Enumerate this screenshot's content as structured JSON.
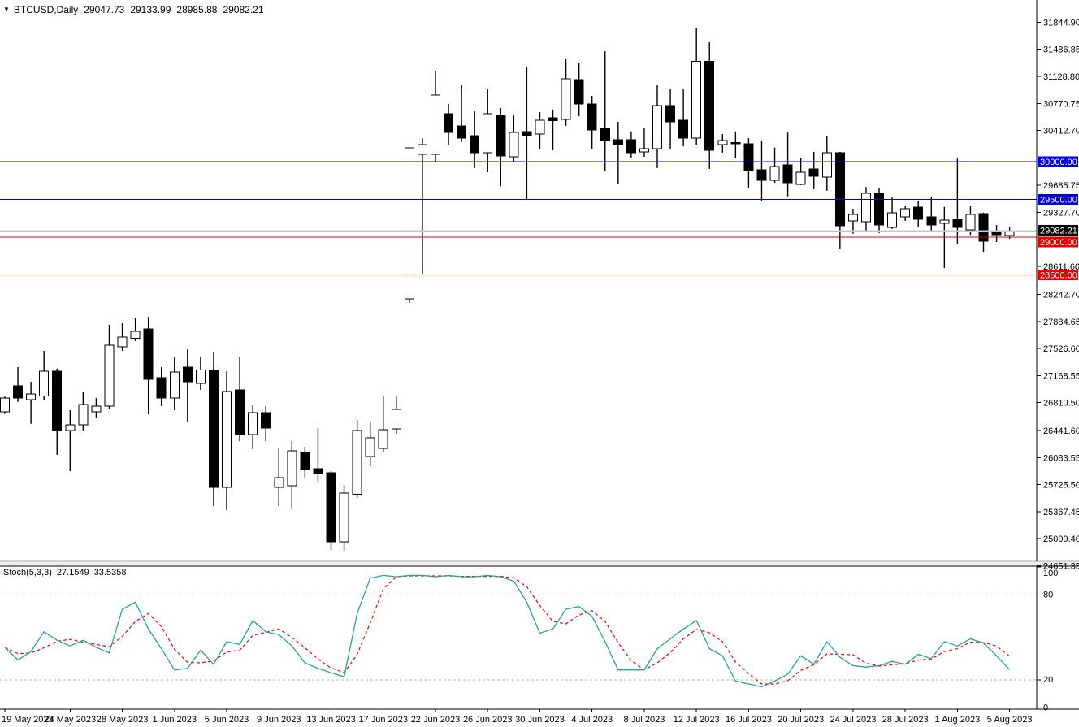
{
  "header": {
    "symbol_period": "BTCUSD,Daily",
    "open": "29047.73",
    "high": "29133.99",
    "low": "28985.88",
    "close": "29082.21"
  },
  "chart_data": {
    "type": "candlestick_with_stochastic",
    "symbol": "BTCUSD",
    "timeframe": "Daily",
    "colors": {
      "bull_body": "#ffffff",
      "bear_body": "#000000",
      "outline": "#000000",
      "blue_level": "#0000e0",
      "red_level": "#e60000",
      "current_price_line": "#c8c8c8",
      "current_price_badge": "#000000",
      "stoch_k": "#25a2a2",
      "stoch_d": "#ff0000",
      "dotted_level": "#bbbbbb"
    },
    "price_axis_ticks": [
      31844.9,
      31486.85,
      31128.8,
      30770.75,
      30412.7,
      29685.75,
      29327.7,
      28611.6,
      28242.7,
      27884.65,
      27526.6,
      27168.55,
      26810.5,
      26441.6,
      26083.55,
      25725.5,
      25367.45,
      25009.4,
      24651.35
    ],
    "price_levels": [
      {
        "price": 30000.0,
        "label": "30000.00",
        "color": "#0000e0"
      },
      {
        "price": 29500.0,
        "label": "29500.00",
        "color": "#0000e0"
      },
      {
        "price": 29000.0,
        "label": "29000.00",
        "color": "#e60000"
      },
      {
        "price": 28500.0,
        "label": "28500.00",
        "color": "#e60000"
      }
    ],
    "current_price": {
      "price": 29082.21,
      "label": "29082.21"
    },
    "x_axis_labels": [
      "19 May 2023",
      "24 May 2023",
      "28 May 2023",
      "1 Jun 2023",
      "5 Jun 2023",
      "9 Jun 2023",
      "13 Jun 2023",
      "17 Jun 2023",
      "22 Jun 2023",
      "26 Jun 2023",
      "30 Jun 2023",
      "4 Jul 2023",
      "8 Jul 2023",
      "12 Jul 2023",
      "16 Jul 2023",
      "20 Jul 2023",
      "24 Jul 2023",
      "28 Jul 2023",
      "1 Aug 2023",
      "5 Aug 2023"
    ],
    "x_tick_candle_indices": [
      0,
      5,
      9,
      13,
      17,
      21,
      25,
      29,
      33,
      37,
      41,
      45,
      49,
      53,
      57,
      61,
      65,
      69,
      73,
      77
    ],
    "candles_ohlc": [
      [
        26690,
        26890,
        26660,
        26870
      ],
      [
        27035,
        27280,
        26820,
        26870
      ],
      [
        26850,
        27085,
        26530,
        26925
      ],
      [
        26900,
        27495,
        26840,
        27225
      ],
      [
        27225,
        27260,
        26120,
        26440
      ],
      [
        26440,
        26710,
        25905,
        26515
      ],
      [
        26515,
        26955,
        26440,
        26785
      ],
      [
        26690,
        26870,
        26605,
        26765
      ],
      [
        26765,
        27840,
        26730,
        27570
      ],
      [
        27550,
        27860,
        27495,
        27680
      ],
      [
        27660,
        27925,
        27625,
        27755
      ],
      [
        27785,
        27945,
        26655,
        27120
      ],
      [
        27140,
        27280,
        26765,
        26870
      ],
      [
        26870,
        27410,
        26710,
        27215
      ],
      [
        27280,
        27515,
        26550,
        27085
      ],
      [
        27065,
        27410,
        26980,
        27245
      ],
      [
        27245,
        27485,
        25440,
        25690
      ],
      [
        25690,
        27225,
        25390,
        26955
      ],
      [
        26980,
        27410,
        26300,
        26390
      ],
      [
        26390,
        26785,
        26195,
        26680
      ],
      [
        26680,
        26765,
        26300,
        26475
      ],
      [
        25690,
        26205,
        25440,
        25820
      ],
      [
        25710,
        26300,
        25400,
        26175
      ],
      [
        26150,
        26225,
        25820,
        25925
      ],
      [
        25935,
        26475,
        25765,
        25870
      ],
      [
        25880,
        25905,
        24860,
        24970
      ],
      [
        24970,
        25720,
        24850,
        25615
      ],
      [
        25600,
        26580,
        25550,
        26440
      ],
      [
        26095,
        26550,
        25970,
        26345
      ],
      [
        26205,
        26900,
        26150,
        26450
      ],
      [
        26465,
        26890,
        26400,
        26720
      ],
      [
        28185,
        30185,
        28130,
        30185
      ],
      [
        30095,
        30310,
        28515,
        30225
      ],
      [
        30095,
        31195,
        29990,
        30880
      ],
      [
        30635,
        30765,
        30225,
        30385
      ],
      [
        30475,
        31010,
        30260,
        30310
      ],
      [
        30345,
        30665,
        29915,
        30120
      ],
      [
        30120,
        30955,
        29860,
        30635
      ],
      [
        30610,
        30710,
        29675,
        30075
      ],
      [
        30065,
        30610,
        29990,
        30385
      ],
      [
        30400,
        31245,
        29505,
        30345
      ],
      [
        30365,
        30655,
        30170,
        30550
      ],
      [
        30580,
        30690,
        30150,
        30540
      ],
      [
        30560,
        31355,
        30475,
        31095
      ],
      [
        31085,
        31300,
        30600,
        30765
      ],
      [
        30765,
        30870,
        30170,
        30420
      ],
      [
        30440,
        31460,
        29880,
        30280
      ],
      [
        30290,
        30525,
        29700,
        30225
      ],
      [
        30290,
        30400,
        30045,
        30120
      ],
      [
        30130,
        30440,
        30065,
        30170
      ],
      [
        30170,
        31010,
        29915,
        30740
      ],
      [
        30740,
        30955,
        30170,
        30525
      ],
      [
        30550,
        30955,
        30205,
        30310
      ],
      [
        30310,
        31765,
        30225,
        31330
      ],
      [
        31330,
        31580,
        29905,
        30150
      ],
      [
        30225,
        30365,
        30120,
        30280
      ],
      [
        30255,
        30400,
        30045,
        30235
      ],
      [
        30235,
        30310,
        29645,
        29880
      ],
      [
        29890,
        30280,
        29485,
        29755
      ],
      [
        29755,
        30185,
        29720,
        29935
      ],
      [
        29955,
        30385,
        29540,
        29720
      ],
      [
        29700,
        30045,
        29690,
        29860
      ],
      [
        29905,
        30130,
        29635,
        29805
      ],
      [
        29795,
        30335,
        29615,
        30120
      ],
      [
        30120,
        30130,
        28840,
        29150
      ],
      [
        29215,
        29375,
        29045,
        29300
      ],
      [
        29205,
        29665,
        29075,
        29580
      ],
      [
        29580,
        29645,
        29055,
        29160
      ],
      [
        29130,
        29525,
        29110,
        29325
      ],
      [
        29270,
        29420,
        29215,
        29375
      ],
      [
        29400,
        29485,
        29130,
        29235
      ],
      [
        29270,
        29525,
        29075,
        29160
      ],
      [
        29185,
        29400,
        28590,
        29225
      ],
      [
        29235,
        30040,
        28915,
        29130
      ],
      [
        29095,
        29420,
        29030,
        29300
      ],
      [
        29310,
        29325,
        28805,
        28945
      ],
      [
        29065,
        29160,
        28935,
        29030
      ],
      [
        29020,
        29140,
        28980,
        29082.21
      ]
    ],
    "stochastic": {
      "label": "Stoch(5,3,3)",
      "k_value": "27.1549",
      "d_value": "33.5358",
      "axis_labels": [
        "100",
        "80",
        "20",
        "0"
      ],
      "axis_values": [
        100,
        80,
        20,
        0
      ],
      "dotted_levels": [
        80,
        20
      ],
      "d_smoothing_period": 3,
      "k_series": [
        43,
        34,
        40,
        54,
        48,
        44,
        48,
        43,
        39,
        70,
        75,
        56,
        42,
        27,
        28,
        41,
        31,
        47,
        45,
        62,
        54,
        52,
        44,
        32,
        28,
        25,
        22,
        67,
        92,
        94,
        93,
        94,
        94,
        93,
        94,
        93,
        93,
        94,
        93,
        90,
        75,
        53,
        56,
        70,
        72,
        65,
        47,
        27,
        27,
        27,
        42,
        49,
        56,
        62,
        42,
        37,
        19,
        17,
        15,
        19,
        24,
        37,
        31,
        47,
        36,
        30,
        29,
        30,
        33,
        31,
        38,
        35,
        47,
        44,
        49,
        46,
        37,
        27.15
      ]
    }
  }
}
